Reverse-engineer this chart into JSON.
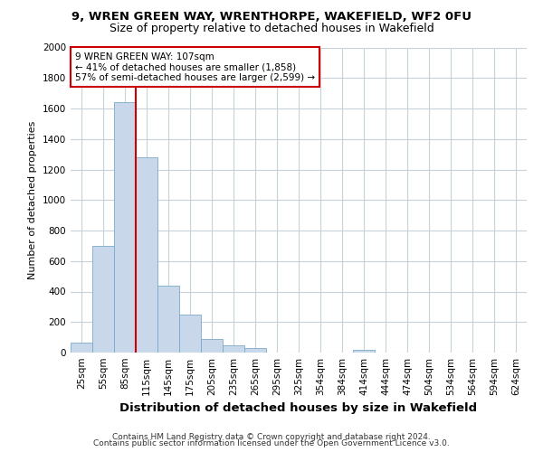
{
  "title1": "9, WREN GREEN WAY, WRENTHORPE, WAKEFIELD, WF2 0FU",
  "title2": "Size of property relative to detached houses in Wakefield",
  "xlabel": "Distribution of detached houses by size in Wakefield",
  "ylabel": "Number of detached properties",
  "bar_labels": [
    "25sqm",
    "55sqm",
    "85sqm",
    "115sqm",
    "145sqm",
    "175sqm",
    "205sqm",
    "235sqm",
    "265sqm",
    "295sqm",
    "325sqm",
    "354sqm",
    "384sqm",
    "414sqm",
    "444sqm",
    "474sqm",
    "504sqm",
    "534sqm",
    "564sqm",
    "594sqm",
    "624sqm"
  ],
  "bar_values": [
    65,
    700,
    1640,
    1280,
    440,
    250,
    90,
    50,
    30,
    0,
    0,
    0,
    0,
    20,
    0,
    0,
    0,
    0,
    0,
    0,
    0
  ],
  "bar_color": "#c8d8ea",
  "bar_edge_color": "#7aaac8",
  "vline_color": "#cc0000",
  "vline_pos": 2.5,
  "annotation_text": "9 WREN GREEN WAY: 107sqm\n← 41% of detached houses are smaller (1,858)\n57% of semi-detached houses are larger (2,599) →",
  "annotation_box_edge_color": "#cc0000",
  "ylim": [
    0,
    2000
  ],
  "yticks": [
    0,
    200,
    400,
    600,
    800,
    1000,
    1200,
    1400,
    1600,
    1800,
    2000
  ],
  "footer1": "Contains HM Land Registry data © Crown copyright and database right 2024.",
  "footer2": "Contains public sector information licensed under the Open Government Licence v3.0.",
  "bg_color": "#ffffff",
  "grid_color": "#c8d0da",
  "title1_fontsize": 9.5,
  "title2_fontsize": 9.0,
  "ylabel_fontsize": 8,
  "xlabel_fontsize": 9.5,
  "tick_fontsize": 7.5,
  "annot_fontsize": 7.5,
  "footer_fontsize": 6.5
}
